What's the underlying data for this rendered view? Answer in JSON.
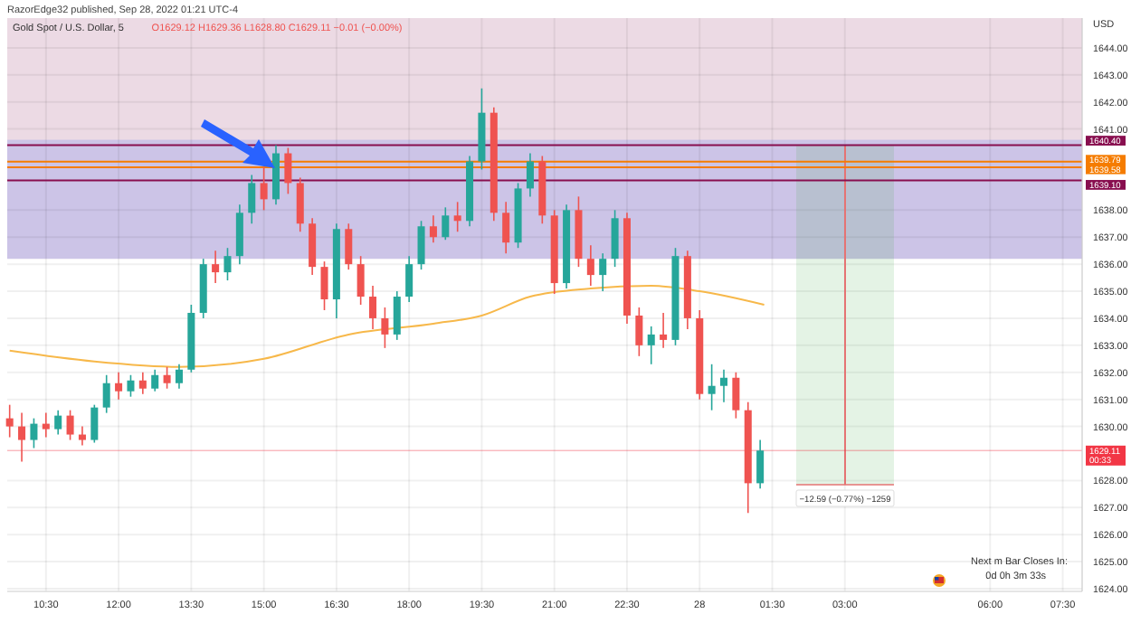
{
  "chart_data": {
    "type": "candlestick",
    "title": "Gold Spot / U.S. Dollar, 5",
    "subtitle": "RazorEdge32 published, Sep 28, 2022 01:21 UTC-4",
    "ylabel": "USD",
    "x": [
      "2022-09-27T09:45",
      "2022-09-27T10:00",
      "2022-09-27T10:15",
      "2022-09-27T10:30",
      "2022-09-27T10:45",
      "2022-09-27T11:00",
      "2022-09-27T11:15",
      "2022-09-27T11:30",
      "2022-09-27T11:45",
      "2022-09-27T12:00",
      "2022-09-27T12:15",
      "2022-09-27T12:30",
      "2022-09-27T12:45",
      "2022-09-27T13:00",
      "2022-09-27T13:15",
      "2022-09-27T13:30",
      "2022-09-27T13:45",
      "2022-09-27T14:00",
      "2022-09-27T14:15",
      "2022-09-27T14:30",
      "2022-09-27T14:45",
      "2022-09-27T15:00",
      "2022-09-27T15:15",
      "2022-09-27T15:30",
      "2022-09-27T15:45",
      "2022-09-27T16:00",
      "2022-09-27T16:15",
      "2022-09-27T16:30",
      "2022-09-27T16:45",
      "2022-09-27T17:00",
      "2022-09-27T17:15",
      "2022-09-27T17:30",
      "2022-09-27T17:45",
      "2022-09-27T18:00",
      "2022-09-27T18:15",
      "2022-09-27T18:30",
      "2022-09-27T18:45",
      "2022-09-27T19:00",
      "2022-09-27T19:15",
      "2022-09-27T19:30",
      "2022-09-27T19:45",
      "2022-09-27T20:00",
      "2022-09-27T20:15",
      "2022-09-27T20:30",
      "2022-09-27T20:45",
      "2022-09-27T21:00",
      "2022-09-27T21:15",
      "2022-09-27T21:30",
      "2022-09-27T21:45",
      "2022-09-27T22:00",
      "2022-09-27T22:15",
      "2022-09-27T22:30",
      "2022-09-27T22:45",
      "2022-09-27T23:00",
      "2022-09-27T23:15",
      "2022-09-27T23:30",
      "2022-09-27T23:45",
      "2022-09-28T00:00",
      "2022-09-28T00:15",
      "2022-09-28T00:30",
      "2022-09-28T00:45",
      "2022-09-28T01:00",
      "2022-09-28T01:15"
    ],
    "ohlc": [
      [
        1630.3,
        1630.8,
        1629.6,
        1630.0
      ],
      [
        1630.0,
        1630.5,
        1628.7,
        1629.5
      ],
      [
        1629.5,
        1630.3,
        1629.2,
        1630.1
      ],
      [
        1630.1,
        1630.5,
        1629.6,
        1629.9
      ],
      [
        1629.9,
        1630.6,
        1629.7,
        1630.4
      ],
      [
        1630.4,
        1630.6,
        1629.5,
        1629.7
      ],
      [
        1629.7,
        1630.0,
        1629.3,
        1629.5
      ],
      [
        1629.5,
        1630.8,
        1629.4,
        1630.7
      ],
      [
        1630.7,
        1631.9,
        1630.5,
        1631.6
      ],
      [
        1631.6,
        1632.0,
        1631.0,
        1631.3
      ],
      [
        1631.3,
        1631.9,
        1631.1,
        1631.7
      ],
      [
        1631.7,
        1632.0,
        1631.2,
        1631.4
      ],
      [
        1631.4,
        1632.1,
        1631.3,
        1631.9
      ],
      [
        1631.9,
        1632.2,
        1631.4,
        1631.6
      ],
      [
        1631.6,
        1632.3,
        1631.4,
        1632.1
      ],
      [
        1632.1,
        1634.5,
        1632.0,
        1634.2
      ],
      [
        1634.2,
        1636.2,
        1634.0,
        1636.0
      ],
      [
        1636.0,
        1636.5,
        1635.3,
        1635.7
      ],
      [
        1635.7,
        1636.6,
        1635.4,
        1636.3
      ],
      [
        1636.3,
        1638.2,
        1636.0,
        1637.9
      ],
      [
        1637.9,
        1639.3,
        1637.5,
        1639.0
      ],
      [
        1639.0,
        1639.6,
        1638.0,
        1638.4
      ],
      [
        1638.4,
        1640.4,
        1638.2,
        1640.1
      ],
      [
        1640.1,
        1640.3,
        1638.6,
        1639.0
      ],
      [
        1639.0,
        1639.2,
        1637.2,
        1637.5
      ],
      [
        1637.5,
        1637.7,
        1635.6,
        1635.9
      ],
      [
        1635.9,
        1636.1,
        1634.3,
        1634.7
      ],
      [
        1634.7,
        1637.5,
        1634.0,
        1637.3
      ],
      [
        1637.3,
        1637.5,
        1635.8,
        1636.0
      ],
      [
        1636.0,
        1636.3,
        1634.5,
        1634.8
      ],
      [
        1634.8,
        1635.2,
        1633.6,
        1634.0
      ],
      [
        1634.0,
        1634.4,
        1632.9,
        1633.4
      ],
      [
        1633.4,
        1635.0,
        1633.2,
        1634.8
      ],
      [
        1634.8,
        1636.3,
        1634.6,
        1636.0
      ],
      [
        1636.0,
        1637.6,
        1635.8,
        1637.4
      ],
      [
        1637.4,
        1637.8,
        1636.8,
        1637.0
      ],
      [
        1637.0,
        1638.1,
        1636.9,
        1637.8
      ],
      [
        1637.8,
        1638.3,
        1637.2,
        1637.6
      ],
      [
        1637.6,
        1640.0,
        1637.4,
        1639.8
      ],
      [
        1639.8,
        1642.5,
        1639.5,
        1641.6
      ],
      [
        1641.6,
        1641.8,
        1637.6,
        1637.9
      ],
      [
        1637.9,
        1638.3,
        1636.4,
        1636.8
      ],
      [
        1636.8,
        1639.0,
        1636.6,
        1638.8
      ],
      [
        1638.8,
        1640.1,
        1638.5,
        1639.8
      ],
      [
        1639.8,
        1640.0,
        1637.5,
        1637.8
      ],
      [
        1637.8,
        1638.0,
        1634.9,
        1635.3
      ],
      [
        1635.3,
        1638.2,
        1635.1,
        1638.0
      ],
      [
        1638.0,
        1638.5,
        1635.9,
        1636.2
      ],
      [
        1636.2,
        1636.7,
        1635.2,
        1635.6
      ],
      [
        1635.6,
        1636.4,
        1635.0,
        1636.2
      ],
      [
        1636.2,
        1638.0,
        1635.9,
        1637.7
      ],
      [
        1637.7,
        1637.9,
        1633.8,
        1634.1
      ],
      [
        1634.1,
        1634.4,
        1632.6,
        1633.0
      ],
      [
        1633.0,
        1633.7,
        1632.3,
        1633.4
      ],
      [
        1633.4,
        1634.2,
        1632.9,
        1633.2
      ],
      [
        1633.2,
        1636.6,
        1633.0,
        1636.3
      ],
      [
        1636.3,
        1636.5,
        1633.6,
        1634.0
      ],
      [
        1634.0,
        1634.3,
        1631.0,
        1631.2
      ],
      [
        1631.2,
        1632.3,
        1630.6,
        1631.5
      ],
      [
        1631.5,
        1632.1,
        1630.9,
        1631.8
      ],
      [
        1631.8,
        1632.0,
        1630.3,
        1630.6
      ],
      [
        1630.6,
        1630.9,
        1626.8,
        1627.9
      ],
      [
        1627.9,
        1629.5,
        1627.7,
        1629.11
      ]
    ],
    "colors": [
      "#ef5350",
      "#ef5350",
      "#26a69a",
      "#ef5350",
      "#26a69a",
      "#ef5350",
      "#ef5350",
      "#26a69a",
      "#26a69a",
      "#ef5350",
      "#26a69a",
      "#ef5350",
      "#26a69a",
      "#ef5350",
      "#26a69a",
      "#26a69a",
      "#26a69a",
      "#ef5350",
      "#26a69a",
      "#26a69a",
      "#26a69a",
      "#ef5350",
      "#26a69a",
      "#ef5350",
      "#ef5350",
      "#ef5350",
      "#ef5350",
      "#26a69a",
      "#ef5350",
      "#ef5350",
      "#ef5350",
      "#ef5350",
      "#26a69a",
      "#26a69a",
      "#26a69a",
      "#ef5350",
      "#26a69a",
      "#ef5350",
      "#26a69a",
      "#26a69a",
      "#ef5350",
      "#ef5350",
      "#26a69a",
      "#26a69a",
      "#ef5350",
      "#ef5350",
      "#26a69a",
      "#ef5350",
      "#ef5350",
      "#26a69a",
      "#26a69a",
      "#ef5350",
      "#ef5350",
      "#26a69a",
      "#ef5350",
      "#26a69a",
      "#ef5350",
      "#ef5350",
      "#26a69a",
      "#26a69a",
      "#ef5350",
      "#ef5350",
      "#26a69a"
    ],
    "series": [
      {
        "type": "line",
        "color": "#f7b84a",
        "x": [
          "2022-09-27T09:45",
          "2022-09-27T11:30",
          "2022-09-27T13:15",
          "2022-09-27T15:00",
          "2022-09-27T16:45",
          "2022-09-27T18:30",
          "2022-09-27T19:30",
          "2022-09-27T20:30",
          "2022-09-27T21:45",
          "2022-09-27T23:00",
          "2022-09-28T00:00",
          "2022-09-28T01:20"
        ],
        "values": [
          1632.8,
          1632.4,
          1632.2,
          1632.5,
          1633.4,
          1633.8,
          1634.1,
          1634.8,
          1635.1,
          1635.2,
          1635.0,
          1634.5
        ]
      }
    ],
    "xlim": [
      "2022-09-27T09:42",
      "2022-09-28T07:54"
    ],
    "ylim": [
      1623.9,
      1645.1
    ],
    "xticks": [
      {
        "value": "2022-09-27T10:30",
        "label": "10:30"
      },
      {
        "value": "2022-09-27T12:00",
        "label": "12:00"
      },
      {
        "value": "2022-09-27T13:30",
        "label": "13:30"
      },
      {
        "value": "2022-09-27T15:00",
        "label": "15:00"
      },
      {
        "value": "2022-09-27T16:30",
        "label": "16:30"
      },
      {
        "value": "2022-09-27T18:00",
        "label": "18:00"
      },
      {
        "value": "2022-09-27T19:30",
        "label": "19:30"
      },
      {
        "value": "2022-09-27T21:00",
        "label": "21:00"
      },
      {
        "value": "2022-09-27T22:30",
        "label": "22:30"
      },
      {
        "value": "2022-09-28T00:00",
        "label": "28"
      },
      {
        "value": "2022-09-28T01:30",
        "label": "01:30"
      },
      {
        "value": "2022-09-28T03:00",
        "label": "03:00"
      },
      {
        "value": "2022-09-28T06:00",
        "label": "06:00"
      },
      {
        "value": "2022-09-28T07:30",
        "label": "07:30"
      }
    ],
    "yticks": [
      {
        "value": 1624,
        "label": "1624.00"
      },
      {
        "value": 1625,
        "label": "1625.00"
      },
      {
        "value": 1626,
        "label": "1626.00"
      },
      {
        "value": 1627,
        "label": "1627.00"
      },
      {
        "value": 1628,
        "label": "1628.00"
      },
      {
        "value": 1630,
        "label": "1630.00"
      },
      {
        "value": 1631,
        "label": "1631.00"
      },
      {
        "value": 1632,
        "label": "1632.00"
      },
      {
        "value": 1633,
        "label": "1633.00"
      },
      {
        "value": 1634,
        "label": "1634.00"
      },
      {
        "value": 1635,
        "label": "1635.00"
      },
      {
        "value": 1636,
        "label": "1636.00"
      },
      {
        "value": 1637,
        "label": "1637.00"
      },
      {
        "value": 1638,
        "label": "1638.00"
      },
      {
        "value": 1641,
        "label": "1641.00"
      },
      {
        "value": 1642,
        "label": "1642.00"
      },
      {
        "value": 1643,
        "label": "1643.00"
      },
      {
        "value": 1644,
        "label": "1644.00"
      }
    ],
    "grid": true,
    "bands": [
      {
        "axis": "y",
        "from": 1636.2,
        "to": 1645.1,
        "color": "#e9d3df"
      },
      {
        "axis": "y",
        "from": 1636.2,
        "to": 1640.6,
        "color": "#c7bfe8"
      }
    ],
    "ref_lines": [
      {
        "axis": "y",
        "value": 1640.4,
        "label": "1640.40",
        "color": "#880e4f"
      },
      {
        "axis": "y",
        "value": 1639.79,
        "label": "1639.79",
        "color": "#f57c00"
      },
      {
        "axis": "y",
        "value": 1639.58,
        "label": "1639.58",
        "color": "#f57c00"
      },
      {
        "axis": "y",
        "value": 1639.1,
        "label": "1639.10",
        "color": "#880e4f"
      },
      {
        "axis": "y",
        "value": 1629.11,
        "label": "1629.11",
        "color": "#f23645"
      }
    ],
    "annotations": [
      "O1629.12 H1629.36 L1628.80 C1629.11 −0.01 (−0.00%)",
      "00:33",
      "Next m Bar Closes In:",
      "0d 0h 3m 33s",
      "−12.59 (−0.77%) −1259"
    ]
  }
}
